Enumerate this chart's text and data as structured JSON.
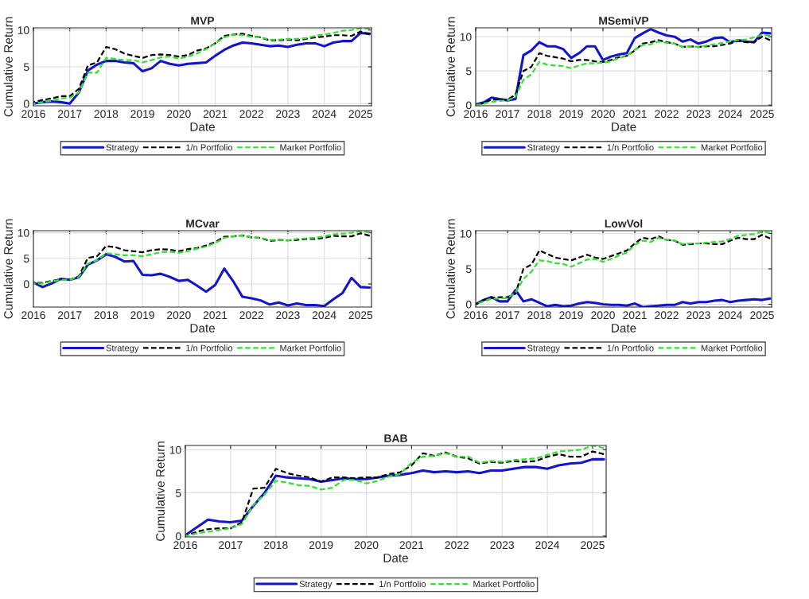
{
  "chart_data": [
    {
      "type": "line",
      "title": "MVP",
      "xlabel": "Date",
      "ylabel": "Cumulative Return",
      "xlim": [
        2016,
        2025.3
      ],
      "xticks": [
        2016,
        2017,
        2018,
        2019,
        2020,
        2021,
        2022,
        2023,
        2024,
        2025
      ],
      "ylim": [
        -0.3,
        10.3
      ],
      "yticks": [
        0,
        5,
        10
      ],
      "grid": true,
      "legend": "bottom",
      "x": [
        2016,
        2016.25,
        2016.5,
        2016.75,
        2017,
        2017.25,
        2017.5,
        2017.75,
        2018,
        2018.25,
        2018.5,
        2018.75,
        2019,
        2019.25,
        2019.5,
        2019.75,
        2020,
        2020.25,
        2020.5,
        2020.75,
        2021,
        2021.25,
        2021.5,
        2021.75,
        2022,
        2022.25,
        2022.5,
        2022.75,
        2023,
        2023.25,
        2023.5,
        2023.75,
        2024,
        2024.25,
        2024.5,
        2024.75,
        2025,
        2025.25
      ],
      "series": [
        {
          "name": "Strategy",
          "color": "#1414c8",
          "line_style": "solid",
          "values": [
            0,
            0.2,
            0.3,
            0.2,
            0,
            1.5,
            4.5,
            5.3,
            5.8,
            5.8,
            5.6,
            5.5,
            4.4,
            4.8,
            5.8,
            5.4,
            5.2,
            5.4,
            5.5,
            5.6,
            6.5,
            7.3,
            7.9,
            8.3,
            8.2,
            8.0,
            7.8,
            7.9,
            7.7,
            8.0,
            8.2,
            8.2,
            7.8,
            8.3,
            8.5,
            8.5,
            9.6,
            9.5
          ]
        },
        {
          "name": "1/n Portfolio",
          "color": "#000000",
          "line_style": "dashed",
          "values": [
            0.2,
            0.5,
            0.7,
            1.0,
            1.0,
            2.0,
            5.2,
            5.6,
            7.7,
            7.4,
            6.8,
            6.5,
            6.2,
            6.6,
            6.7,
            6.6,
            6.4,
            6.6,
            7.2,
            7.5,
            8.2,
            9.2,
            9.4,
            9.5,
            9.2,
            9.0,
            8.6,
            8.6,
            8.7,
            8.6,
            8.8,
            9.0,
            9.1,
            9.3,
            9.3,
            9.2,
            9.8,
            9.4
          ]
        },
        {
          "name": "Market Portfolio",
          "color": "#33e033",
          "line_style": "dashed",
          "values": [
            0,
            0.2,
            0.4,
            0.7,
            0.8,
            1.5,
            4.2,
            4.2,
            6.2,
            6.1,
            5.9,
            5.9,
            5.6,
            5.9,
            6.3,
            6.4,
            6.1,
            6.4,
            6.8,
            7.4,
            8.2,
            9.0,
            9.4,
            9.3,
            9.1,
            9.0,
            8.7,
            8.7,
            8.8,
            8.8,
            8.9,
            9.2,
            9.4,
            9.6,
            9.9,
            10.0,
            10.3,
            10.2
          ]
        }
      ]
    },
    {
      "type": "line",
      "title": "MSemiVP",
      "xlabel": "Date",
      "ylabel": "Cumulative Return",
      "xlim": [
        2016,
        2025.3
      ],
      "xticks": [
        2016,
        2017,
        2018,
        2019,
        2020,
        2021,
        2022,
        2023,
        2024,
        2025
      ],
      "ylim": [
        -0.1,
        11.3
      ],
      "yticks": [
        0,
        5,
        10
      ],
      "grid": true,
      "legend": "bottom",
      "x": [
        2016,
        2016.25,
        2016.5,
        2016.75,
        2017,
        2017.25,
        2017.5,
        2017.75,
        2018,
        2018.25,
        2018.5,
        2018.75,
        2019,
        2019.25,
        2019.5,
        2019.75,
        2020,
        2020.25,
        2020.5,
        2020.75,
        2021,
        2021.25,
        2021.5,
        2021.75,
        2022,
        2022.25,
        2022.5,
        2022.75,
        2023,
        2023.25,
        2023.5,
        2023.75,
        2024,
        2024.25,
        2024.5,
        2024.75,
        2025,
        2025.25
      ],
      "series": [
        {
          "name": "Strategy",
          "color": "#1414c8",
          "line_style": "solid",
          "values": [
            0.1,
            0.4,
            1.1,
            0.9,
            0.7,
            0.9,
            7.3,
            8.0,
            9.2,
            8.6,
            8.6,
            8.2,
            6.9,
            7.6,
            8.6,
            8.6,
            6.6,
            7.1,
            7.4,
            7.6,
            9.8,
            10.5,
            11.1,
            10.6,
            10.2,
            10.0,
            9.3,
            9.6,
            9.0,
            9.3,
            9.8,
            9.9,
            9.2,
            9.5,
            9.3,
            9.2,
            10.6,
            10.5
          ]
        },
        {
          "name": "1/n Portfolio",
          "color": "#000000",
          "line_style": "dashed",
          "values": [
            0,
            0.3,
            0.8,
            0.8,
            0.8,
            1.5,
            5.0,
            5.6,
            7.6,
            7.2,
            7.0,
            6.8,
            6.4,
            6.6,
            6.6,
            6.4,
            6.3,
            6.6,
            7.0,
            7.2,
            8.0,
            9.0,
            9.2,
            9.5,
            9.2,
            9.0,
            8.5,
            8.6,
            8.5,
            8.6,
            8.6,
            8.8,
            9.0,
            9.4,
            9.2,
            9.2,
            10.0,
            9.5
          ]
        },
        {
          "name": "Market Portfolio",
          "color": "#33e033",
          "line_style": "dashed",
          "values": [
            0,
            0.2,
            0.5,
            0.6,
            0.7,
            1.2,
            3.7,
            4.5,
            6.3,
            5.9,
            5.8,
            5.7,
            5.4,
            5.8,
            6.1,
            6.1,
            6.2,
            6.4,
            6.9,
            7.2,
            8.1,
            8.8,
            8.9,
            9.3,
            9.1,
            9.0,
            8.5,
            8.6,
            8.5,
            8.7,
            8.9,
            9.1,
            9.3,
            9.5,
            9.6,
            9.9,
            10.3,
            10.2
          ]
        }
      ]
    },
    {
      "type": "line",
      "title": "MCvar",
      "xlabel": "Date",
      "ylabel": "Cumulative Return",
      "xlim": [
        2016,
        2025.3
      ],
      "xticks": [
        2016,
        2017,
        2018,
        2019,
        2020,
        2021,
        2022,
        2023,
        2024,
        2025
      ],
      "ylim": [
        -4.5,
        10.4
      ],
      "yticks": [
        0,
        5,
        10
      ],
      "grid": true,
      "legend": "bottom",
      "x": [
        2016,
        2016.25,
        2016.5,
        2016.75,
        2017,
        2017.25,
        2017.5,
        2017.75,
        2018,
        2018.25,
        2018.5,
        2018.75,
        2019,
        2019.25,
        2019.5,
        2019.75,
        2020,
        2020.25,
        2020.5,
        2020.75,
        2021,
        2021.25,
        2021.5,
        2021.75,
        2022,
        2022.25,
        2022.5,
        2022.75,
        2023,
        2023.25,
        2023.5,
        2023.75,
        2024,
        2024.25,
        2024.5,
        2024.75,
        2025,
        2025.25
      ],
      "series": [
        {
          "name": "Strategy",
          "color": "#1414c8",
          "line_style": "solid",
          "values": [
            0.3,
            -0.6,
            0.1,
            1.0,
            0.8,
            1.3,
            3.8,
            4.6,
            5.8,
            5.3,
            4.4,
            4.5,
            1.8,
            1.7,
            2.0,
            1.4,
            0.6,
            0.8,
            -0.3,
            -1.5,
            -0.2,
            3.0,
            0.5,
            -2.5,
            -2.8,
            -3.2,
            -4.0,
            -3.6,
            -4.2,
            -3.8,
            -4.1,
            -4.1,
            -4.3,
            -3.0,
            -1.8,
            1.2,
            -0.6,
            -0.7
          ]
        },
        {
          "name": "1/n Portfolio",
          "color": "#000000",
          "line_style": "dashed",
          "values": [
            0.2,
            0.2,
            0.6,
            0.9,
            0.8,
            1.5,
            5.1,
            5.4,
            7.4,
            7.2,
            6.6,
            6.4,
            6.2,
            6.6,
            6.8,
            6.7,
            6.4,
            6.8,
            7.0,
            7.5,
            8.2,
            9.2,
            9.3,
            9.5,
            9.1,
            9.0,
            8.4,
            8.6,
            8.5,
            8.6,
            8.8,
            8.8,
            9.0,
            9.4,
            9.3,
            9.3,
            9.9,
            9.4
          ]
        },
        {
          "name": "Market Portfolio",
          "color": "#33e033",
          "line_style": "dashed",
          "values": [
            0.1,
            0.1,
            0.5,
            0.8,
            0.8,
            1.4,
            4.0,
            4.6,
            6.0,
            5.8,
            5.6,
            5.6,
            5.4,
            5.8,
            6.2,
            6.3,
            6.1,
            6.4,
            6.9,
            7.3,
            8.0,
            9.0,
            9.3,
            9.5,
            9.1,
            9.0,
            8.6,
            8.6,
            8.5,
            8.8,
            8.9,
            9.0,
            9.3,
            9.7,
            9.8,
            10.0,
            10.3,
            10.1
          ]
        }
      ]
    },
    {
      "type": "line",
      "title": "LowVol",
      "xlabel": "Date",
      "ylabel": "Cumulative Return",
      "xlim": [
        2016,
        2025.3
      ],
      "xticks": [
        2016,
        2017,
        2018,
        2019,
        2020,
        2021,
        2022,
        2023,
        2024,
        2025
      ],
      "ylim": [
        -0.4,
        10.4
      ],
      "yticks": [
        0,
        5,
        10
      ],
      "grid": true,
      "legend": "bottom",
      "x": [
        2016,
        2016.25,
        2016.5,
        2016.75,
        2017,
        2017.25,
        2017.5,
        2017.75,
        2018,
        2018.25,
        2018.5,
        2018.75,
        2019,
        2019.25,
        2019.5,
        2019.75,
        2020,
        2020.25,
        2020.5,
        2020.75,
        2021,
        2021.25,
        2021.5,
        2021.75,
        2022,
        2022.25,
        2022.5,
        2022.75,
        2023,
        2023.25,
        2023.5,
        2023.75,
        2024,
        2024.25,
        2024.5,
        2024.75,
        2025,
        2025.25
      ],
      "series": [
        {
          "name": "Strategy",
          "color": "#1414c8",
          "line_style": "solid",
          "values": [
            0,
            0.6,
            1.0,
            0.4,
            0.4,
            2.0,
            0.4,
            0.7,
            0.2,
            -0.3,
            -0.1,
            -0.3,
            -0.2,
            0.1,
            0.3,
            0.2,
            0,
            -0.1,
            -0.1,
            -0.2,
            0.1,
            -0.4,
            -0.3,
            -0.2,
            -0.1,
            -0.1,
            0.3,
            0.1,
            0.3,
            0.3,
            0.5,
            0.6,
            0.3,
            0.5,
            0.6,
            0.7,
            0.6,
            0.8
          ]
        },
        {
          "name": "1/n Portfolio",
          "color": "#000000",
          "line_style": "dashed",
          "values": [
            0,
            0.6,
            0.9,
            1.0,
            1.0,
            1.5,
            5.0,
            5.6,
            7.6,
            7.1,
            6.6,
            6.4,
            6.2,
            6.6,
            7.0,
            6.6,
            6.4,
            6.8,
            7.2,
            7.6,
            8.6,
            9.4,
            9.2,
            9.6,
            9.1,
            9.0,
            8.4,
            8.5,
            8.6,
            8.6,
            8.5,
            8.5,
            9.0,
            9.4,
            9.2,
            9.2,
            9.8,
            9.3
          ]
        },
        {
          "name": "Market Portfolio",
          "color": "#33e033",
          "line_style": "dashed",
          "values": [
            0,
            0.4,
            0.8,
            0.8,
            0.9,
            1.6,
            3.6,
            4.6,
            6.2,
            6.1,
            5.8,
            5.7,
            5.3,
            5.8,
            6.3,
            6.4,
            6.0,
            6.4,
            6.9,
            7.3,
            8.4,
            9.0,
            8.8,
            9.4,
            9.1,
            9.0,
            8.5,
            8.6,
            8.6,
            8.7,
            8.8,
            8.9,
            9.2,
            9.7,
            9.8,
            9.9,
            10.3,
            10.1
          ]
        }
      ]
    },
    {
      "type": "line",
      "title": "BAB",
      "xlabel": "Date",
      "ylabel": "Cumulative Return",
      "xlim": [
        2016,
        2025.3
      ],
      "xticks": [
        2016,
        2017,
        2018,
        2019,
        2020,
        2021,
        2022,
        2023,
        2024,
        2025
      ],
      "ylim": [
        -0.1,
        10.5
      ],
      "yticks": [
        0,
        5,
        10
      ],
      "grid": true,
      "legend": "bottom",
      "x": [
        2016,
        2016.25,
        2016.5,
        2016.75,
        2017,
        2017.25,
        2017.5,
        2017.75,
        2018,
        2018.25,
        2018.5,
        2018.75,
        2019,
        2019.25,
        2019.5,
        2019.75,
        2020,
        2020.25,
        2020.5,
        2020.75,
        2021,
        2021.25,
        2021.5,
        2021.75,
        2022,
        2022.25,
        2022.5,
        2022.75,
        2023,
        2023.25,
        2023.5,
        2023.75,
        2024,
        2024.25,
        2024.5,
        2024.75,
        2025,
        2025.25
      ],
      "series": [
        {
          "name": "Strategy",
          "color": "#1414c8",
          "line_style": "solid",
          "values": [
            0.1,
            1.0,
            1.9,
            1.7,
            1.6,
            1.8,
            3.5,
            5.0,
            7.0,
            6.8,
            6.7,
            6.6,
            6.3,
            6.5,
            6.7,
            6.6,
            6.6,
            6.8,
            7.0,
            7.1,
            7.3,
            7.6,
            7.4,
            7.5,
            7.4,
            7.5,
            7.3,
            7.6,
            7.6,
            7.8,
            8.0,
            8.0,
            7.8,
            8.2,
            8.4,
            8.5,
            8.9,
            8.9
          ]
        },
        {
          "name": "1/n Portfolio",
          "color": "#000000",
          "line_style": "dashed",
          "values": [
            0,
            0.5,
            0.8,
            0.9,
            0.9,
            1.6,
            5.5,
            5.6,
            7.8,
            7.3,
            7.0,
            6.8,
            6.3,
            6.8,
            6.8,
            6.7,
            6.8,
            6.8,
            7.2,
            7.4,
            8.2,
            9.6,
            9.3,
            9.7,
            9.2,
            9.0,
            8.4,
            8.6,
            8.5,
            8.7,
            8.6,
            8.7,
            9.2,
            9.5,
            9.2,
            9.2,
            9.8,
            9.5
          ]
        },
        {
          "name": "Market Portfolio",
          "color": "#33e033",
          "line_style": "dashed",
          "values": [
            0,
            0.3,
            0.5,
            0.7,
            0.9,
            1.4,
            3.6,
            4.8,
            6.4,
            6.2,
            5.9,
            5.8,
            5.4,
            5.6,
            6.5,
            6.5,
            6.1,
            6.4,
            6.9,
            7.2,
            8.5,
            9.2,
            9.3,
            9.6,
            9.2,
            9.2,
            8.5,
            8.7,
            8.6,
            8.8,
            8.9,
            9.0,
            9.4,
            9.8,
            9.9,
            10.0,
            10.5,
            10.2
          ]
        }
      ]
    }
  ]
}
